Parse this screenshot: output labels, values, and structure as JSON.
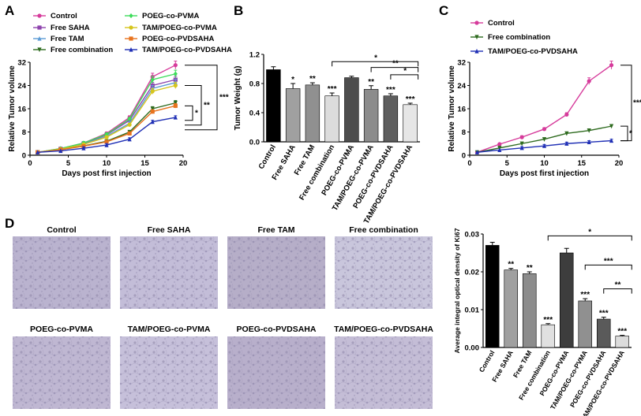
{
  "panels": {
    "A": "A",
    "B": "B",
    "C": "C",
    "D": "D"
  },
  "chart_data": [
    {
      "id": "A",
      "type": "line",
      "title": "",
      "xlabel": "Days post first injection",
      "ylabel": "Relative Tumor volume",
      "xlim": [
        0,
        20
      ],
      "ylim": [
        0,
        32
      ],
      "xticks": [
        0,
        5,
        10,
        15,
        20
      ],
      "yticks": [
        0,
        8,
        16,
        24,
        32
      ],
      "x": [
        1,
        4,
        7,
        10,
        13,
        16,
        19
      ],
      "series": [
        {
          "name": "Control",
          "color": "#d63b9b",
          "marker": "circle",
          "values": [
            1,
            2.3,
            4.2,
            7.5,
            13,
            27,
            31
          ]
        },
        {
          "name": "Free SAHA",
          "color": "#8e44ad",
          "marker": "square",
          "values": [
            1,
            2.2,
            4.0,
            7.0,
            12,
            24,
            26
          ]
        },
        {
          "name": "Free TAM",
          "color": "#5b9bd5",
          "marker": "triangle",
          "values": [
            1,
            2.2,
            3.8,
            6.5,
            11,
            23,
            25
          ]
        },
        {
          "name": "Free combination",
          "color": "#2e6b1f",
          "marker": "triangle-down",
          "values": [
            1,
            1.9,
            3.2,
            4.8,
            8,
            16,
            18
          ]
        },
        {
          "name": "POEG-co-PVMA",
          "color": "#3ddc5a",
          "marker": "diamond",
          "values": [
            1,
            2.3,
            4.2,
            7.2,
            12.5,
            26,
            28
          ]
        },
        {
          "name": "TAM/POEG-co-PVMA",
          "color": "#d6c51c",
          "marker": "circle",
          "values": [
            1,
            2.1,
            3.7,
            6.2,
            10.5,
            22,
            24
          ]
        },
        {
          "name": "POEG-co-PVDSAHA",
          "color": "#e8731e",
          "marker": "square",
          "values": [
            1,
            1.9,
            3.1,
            4.6,
            7.5,
            15,
            17
          ]
        },
        {
          "name": "TAM/POEG-co-PVDSAHA",
          "color": "#1f2fb5",
          "marker": "triangle",
          "values": [
            1,
            1.5,
            2.4,
            3.5,
            5.5,
            11.5,
            13
          ]
        }
      ],
      "significance": [
        "*",
        "**",
        "***"
      ]
    },
    {
      "id": "B",
      "type": "bar",
      "xlabel": "",
      "ylabel": "Tumor Weight (g)",
      "ylim": [
        0,
        1.2
      ],
      "yticks": [
        0.0,
        0.4,
        0.8,
        1.2
      ],
      "ytick_labels": [
        "0.0",
        "0.4",
        "0.8",
        "1.2"
      ],
      "categories": [
        "Control",
        "Free SAHA",
        "Free TAM",
        "Free combination",
        "POEG-co-PVMA",
        "TAM/POEG-co-PVMA",
        "POEG-co-PVDSAHA",
        "TAM/POEG-co-PVDSAHA"
      ],
      "values": [
        0.99,
        0.73,
        0.78,
        0.63,
        0.88,
        0.72,
        0.63,
        0.51
      ],
      "errors": [
        0.04,
        0.07,
        0.03,
        0.04,
        0.02,
        0.05,
        0.03,
        0.02
      ],
      "colors": [
        "#000000",
        "#a0a0a0",
        "#909090",
        "#dcdcdc",
        "#4d4d4d",
        "#8c8c8c",
        "#5e5e5e",
        "#e6e6e6"
      ],
      "bar_labels": [
        "",
        "*",
        "**",
        "***",
        "",
        "**",
        "***",
        "***"
      ],
      "brackets": [
        "*",
        "**",
        "*"
      ]
    },
    {
      "id": "C",
      "type": "line",
      "xlabel": "Days post first injection",
      "ylabel": "Relative Tumor volume",
      "xlim": [
        0,
        20
      ],
      "ylim": [
        0,
        32
      ],
      "xticks": [
        0,
        5,
        10,
        15,
        20
      ],
      "yticks": [
        0,
        8,
        16,
        24,
        32
      ],
      "x": [
        1,
        4,
        7,
        10,
        13,
        16,
        19
      ],
      "series": [
        {
          "name": "Control",
          "color": "#d63b9b",
          "marker": "circle",
          "values": [
            1,
            3.8,
            6.2,
            9,
            14,
            25.5,
            31
          ]
        },
        {
          "name": "Free combination",
          "color": "#2e6b1f",
          "marker": "triangle-down",
          "values": [
            1,
            2.5,
            4,
            5.5,
            7.5,
            8.5,
            10
          ]
        },
        {
          "name": "TAM/POEG-co-PVDSAHA",
          "color": "#1f2fb5",
          "marker": "triangle",
          "values": [
            1,
            1.8,
            2.5,
            3.2,
            4,
            4.5,
            5
          ]
        }
      ],
      "significance": [
        "*",
        "***"
      ]
    },
    {
      "id": "D",
      "type": "bar",
      "xlabel": "",
      "ylabel": "Average integral optical density of Ki67",
      "ylim": [
        0,
        0.03
      ],
      "yticks": [
        0.0,
        0.01,
        0.02,
        0.03
      ],
      "ytick_labels": [
        "0.00",
        "0.01",
        "0.02",
        "0.03"
      ],
      "categories": [
        "Control",
        "Free SAHA",
        "Free TAM",
        "Free combination",
        "POEG-co-PVMA",
        "TAM/POEG-co-PVMA",
        "POEG-co-PVDSAHA",
        "TAM/POEG-co-PVDSAHA"
      ],
      "values": [
        0.027,
        0.0205,
        0.0195,
        0.006,
        0.025,
        0.0123,
        0.0075,
        0.003
      ],
      "errors": [
        0.0008,
        0.0004,
        0.0005,
        0.0003,
        0.0012,
        0.0006,
        0.0005,
        0.0002
      ],
      "colors": [
        "#000000",
        "#a0a0a0",
        "#8c8c8c",
        "#e0e0e0",
        "#3d3d3d",
        "#909090",
        "#5a5a5a",
        "#dcdcdc"
      ],
      "bar_labels": [
        "",
        "**",
        "**",
        "***",
        "",
        "***",
        "***",
        "***"
      ],
      "brackets": [
        "*",
        "***",
        "**"
      ]
    }
  ],
  "images": {
    "titles": [
      "Control",
      "Free SAHA",
      "Free TAM",
      "Free combination",
      "POEG-co-PVMA",
      "TAM/POEG-co-PVMA",
      "POEG-co-PVDSAHA",
      "TAM/POEG-co-PVDSAHA"
    ],
    "tint": [
      "#bab3cf",
      "#c3bdd8",
      "#b6aec8",
      "#c9c6dc",
      "#bfb7d2",
      "#c6c0da",
      "#b8afcb",
      "#c4bdd6"
    ]
  }
}
